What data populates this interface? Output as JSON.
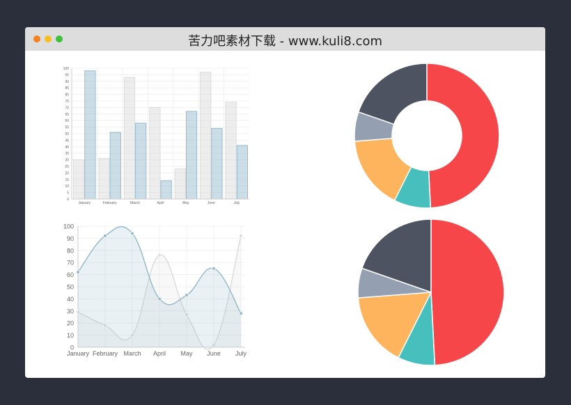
{
  "window": {
    "title": "苦力吧素材下载 - www.kuli8.com",
    "controls": [
      {
        "name": "close",
        "color": "#f5821f"
      },
      {
        "name": "minimize",
        "color": "#f5c01f"
      },
      {
        "name": "maximize",
        "color": "#3cc13b"
      }
    ]
  },
  "chart_data": [
    {
      "type": "bar",
      "categories": [
        "January",
        "February",
        "March",
        "April",
        "May",
        "June",
        "July"
      ],
      "ylim": [
        0,
        100
      ],
      "yticks": [
        "0",
        "5",
        "10",
        "15",
        "20",
        "25",
        "30",
        "35",
        "40",
        "45",
        "50",
        "55",
        "60",
        "65",
        "70",
        "75",
        "80",
        "85",
        "90",
        "95",
        "100"
      ],
      "grid": true,
      "series": [
        {
          "values": [
            30,
            31,
            93,
            70,
            23,
            97,
            74
          ],
          "color": "#dcdcdc"
        },
        {
          "values": [
            98,
            51,
            58,
            14,
            67,
            54,
            41
          ],
          "color": "#97bbcd"
        }
      ]
    },
    {
      "type": "line",
      "categories": [
        "January",
        "February",
        "March",
        "April",
        "May",
        "June",
        "July"
      ],
      "ylim": [
        0,
        100
      ],
      "yticks": [
        "0",
        "10",
        "20",
        "30",
        "40",
        "50",
        "60",
        "70",
        "80",
        "90",
        "100"
      ],
      "grid": true,
      "area": true,
      "series": [
        {
          "values": [
            29,
            18,
            10,
            76,
            27,
            2,
            92
          ],
          "color": "#dcdcdc"
        },
        {
          "values": [
            62,
            92,
            94,
            40,
            43,
            65,
            28
          ],
          "color": "#97bbcd"
        }
      ]
    },
    {
      "type": "doughnut",
      "values": [
        300,
        50,
        100,
        40,
        120
      ],
      "colors": [
        "#F7464A",
        "#46BFBD",
        "#FDB45C",
        "#949FB1",
        "#4D5360"
      ]
    },
    {
      "type": "pie",
      "values": [
        300,
        50,
        100,
        40,
        120
      ],
      "colors": [
        "#F7464A",
        "#46BFBD",
        "#FDB45C",
        "#949FB1",
        "#4D5360"
      ]
    }
  ]
}
